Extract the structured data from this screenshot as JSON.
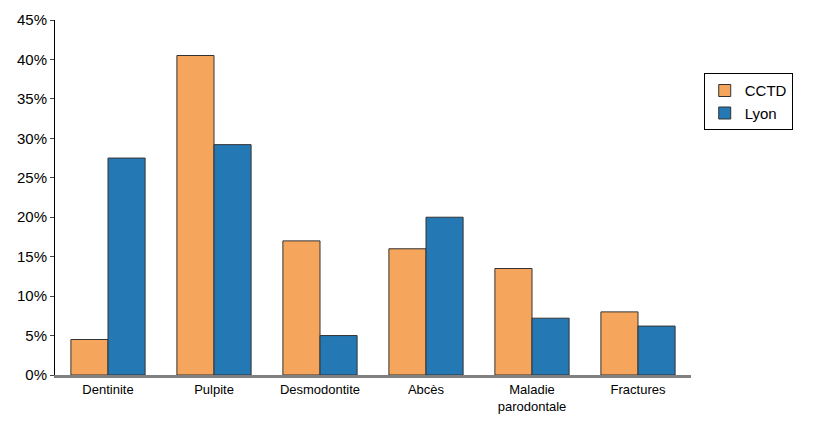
{
  "chart_data": {
    "type": "bar",
    "categories": [
      "Dentinite",
      "Pulpite",
      "Desmodontite",
      "Abcès",
      "Maladie parodontale",
      "Fractures"
    ],
    "series": [
      {
        "name": "CCTD",
        "color": "#f5a55c",
        "values": [
          4.5,
          40.5,
          17,
          16,
          13.5,
          8
        ]
      },
      {
        "name": "Lyon",
        "color": "#2479b5",
        "values": [
          27.5,
          29.2,
          5,
          20,
          7.2,
          6.2
        ]
      }
    ],
    "ylim": [
      0,
      45
    ],
    "yticks": [
      {
        "value": 0,
        "label": "0%"
      },
      {
        "value": 5,
        "label": "5%"
      },
      {
        "value": 10,
        "label": "10%"
      },
      {
        "value": 15,
        "label": "15%"
      },
      {
        "value": 20,
        "label": "20%"
      },
      {
        "value": 25,
        "label": "25%"
      },
      {
        "value": 30,
        "label": "30%"
      },
      {
        "value": 35,
        "label": "35%"
      },
      {
        "value": 40,
        "label": "40%"
      },
      {
        "value": 45,
        "label": "45%"
      }
    ],
    "grid": false,
    "legend": "right"
  }
}
